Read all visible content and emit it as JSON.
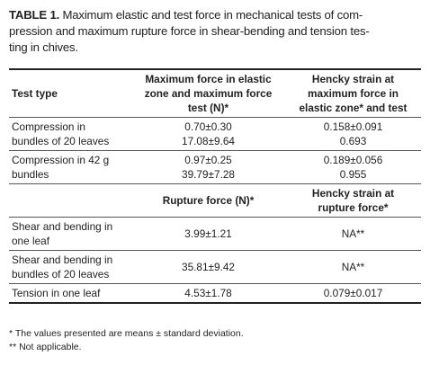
{
  "caption": {
    "label": "TABLE 1.",
    "lines": [
      "Maximum elastic and test force in mechanical tests of com-",
      "pression and maximum rupture force in shear-bending and tension tes-",
      "ting in chives."
    ]
  },
  "table": {
    "sections": [
      {
        "header": [
          [
            "Test type"
          ],
          [
            "Maximum force in elastic",
            "zone and maximum force",
            "test (N)*"
          ],
          [
            "Hencky strain at",
            "maximum force in",
            "elastic zone* and test"
          ]
        ],
        "rows": [
          [
            [
              "Compression in",
              "bundles of 20 leaves"
            ],
            [
              "0.70±0.30",
              "17.08±9.64"
            ],
            [
              "0.158±0.091",
              "0.693"
            ]
          ],
          [
            [
              "Compression in 42 g",
              "bundles"
            ],
            [
              "0.97±0.25",
              "39.79±7.28"
            ],
            [
              "0.189±0.056",
              "0.955"
            ]
          ]
        ]
      },
      {
        "header": [
          [],
          [
            "Rupture force (N)*"
          ],
          [
            "Hencky strain at",
            "rupture force*"
          ]
        ],
        "rows": [
          [
            [
              "Shear and bending in",
              "one leaf"
            ],
            [
              "3.99±1.21"
            ],
            [
              "NA**"
            ]
          ],
          [
            [
              "Shear and bending in",
              "bundles of 20 leaves"
            ],
            [
              "35.81±9.42"
            ],
            [
              "NA**"
            ]
          ],
          [
            [
              "Tension in one leaf"
            ],
            [
              "4.53±1.78"
            ],
            [
              "0.079±0.017"
            ]
          ]
        ]
      }
    ]
  },
  "footnotes": [
    "* The values presented are means ± standard deviation.",
    "** Not applicable."
  ]
}
